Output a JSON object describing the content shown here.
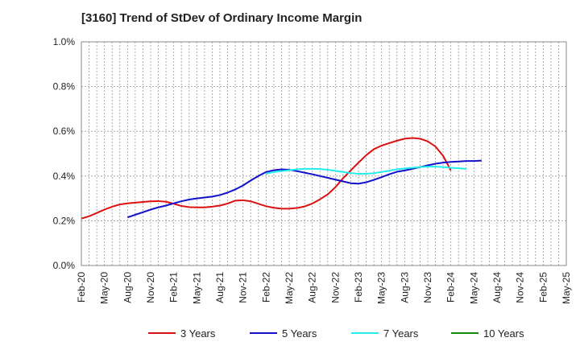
{
  "title": "[3160]  Trend of StDev of Ordinary Income Margin",
  "chart_data": {
    "type": "line",
    "title": "[3160]  Trend of StDev of Ordinary Income Margin",
    "xlabel": "",
    "ylabel": "",
    "ylim": [
      0,
      1.0
    ],
    "y_ticks": [
      "0.0%",
      "0.2%",
      "0.4%",
      "0.6%",
      "0.8%",
      "1.0%"
    ],
    "x_ticks": [
      "Feb-20",
      "May-20",
      "Aug-20",
      "Nov-20",
      "Feb-21",
      "May-21",
      "Aug-21",
      "Nov-21",
      "Feb-22",
      "May-22",
      "Aug-22",
      "Nov-22",
      "Feb-23",
      "May-23",
      "Aug-23",
      "Nov-23",
      "Feb-24",
      "May-24",
      "Aug-24",
      "Nov-24",
      "Feb-25",
      "May-25"
    ],
    "x_start": "Feb-20",
    "grid": true,
    "legend_position": "bottom",
    "series": [
      {
        "name": "3 Years",
        "color": "#dd1111",
        "start": "Feb-20",
        "values": [
          0.21,
          0.22,
          0.235,
          0.25,
          0.263,
          0.273,
          0.278,
          0.281,
          0.284,
          0.287,
          0.288,
          0.285,
          0.276,
          0.266,
          0.261,
          0.26,
          0.26,
          0.263,
          0.268,
          0.277,
          0.29,
          0.292,
          0.287,
          0.276,
          0.265,
          0.258,
          0.254,
          0.254,
          0.257,
          0.264,
          0.277,
          0.296,
          0.318,
          0.35,
          0.39,
          0.425,
          0.46,
          0.493,
          0.52,
          0.536,
          0.547,
          0.558,
          0.567,
          0.57,
          0.567,
          0.555,
          0.532,
          0.49,
          0.425
        ]
      },
      {
        "name": "5 Years",
        "color": "#1111cc",
        "start": "Aug-20",
        "values": [
          0.215,
          0.227,
          0.238,
          0.25,
          0.26,
          0.268,
          0.278,
          0.287,
          0.295,
          0.3,
          0.304,
          0.308,
          0.315,
          0.326,
          0.34,
          0.358,
          0.38,
          0.4,
          0.418,
          0.426,
          0.43,
          0.428,
          0.422,
          0.415,
          0.408,
          0.4,
          0.392,
          0.384,
          0.376,
          0.368,
          0.366,
          0.372,
          0.383,
          0.395,
          0.408,
          0.419,
          0.425,
          0.432,
          0.44,
          0.448,
          0.455,
          0.46,
          0.463,
          0.465,
          0.467,
          0.467,
          0.469
        ]
      },
      {
        "name": "7 Years",
        "color": "#22eeee",
        "start": "Feb-22",
        "values": [
          0.41,
          0.418,
          0.422,
          0.426,
          0.43,
          0.432,
          0.432,
          0.431,
          0.428,
          0.423,
          0.418,
          0.413,
          0.41,
          0.41,
          0.413,
          0.418,
          0.424,
          0.43,
          0.434,
          0.437,
          0.44,
          0.442,
          0.442,
          0.44,
          0.437,
          0.435,
          0.432
        ]
      },
      {
        "name": "10 Years",
        "color": "#118811",
        "start": "Feb-20",
        "values": []
      }
    ]
  }
}
